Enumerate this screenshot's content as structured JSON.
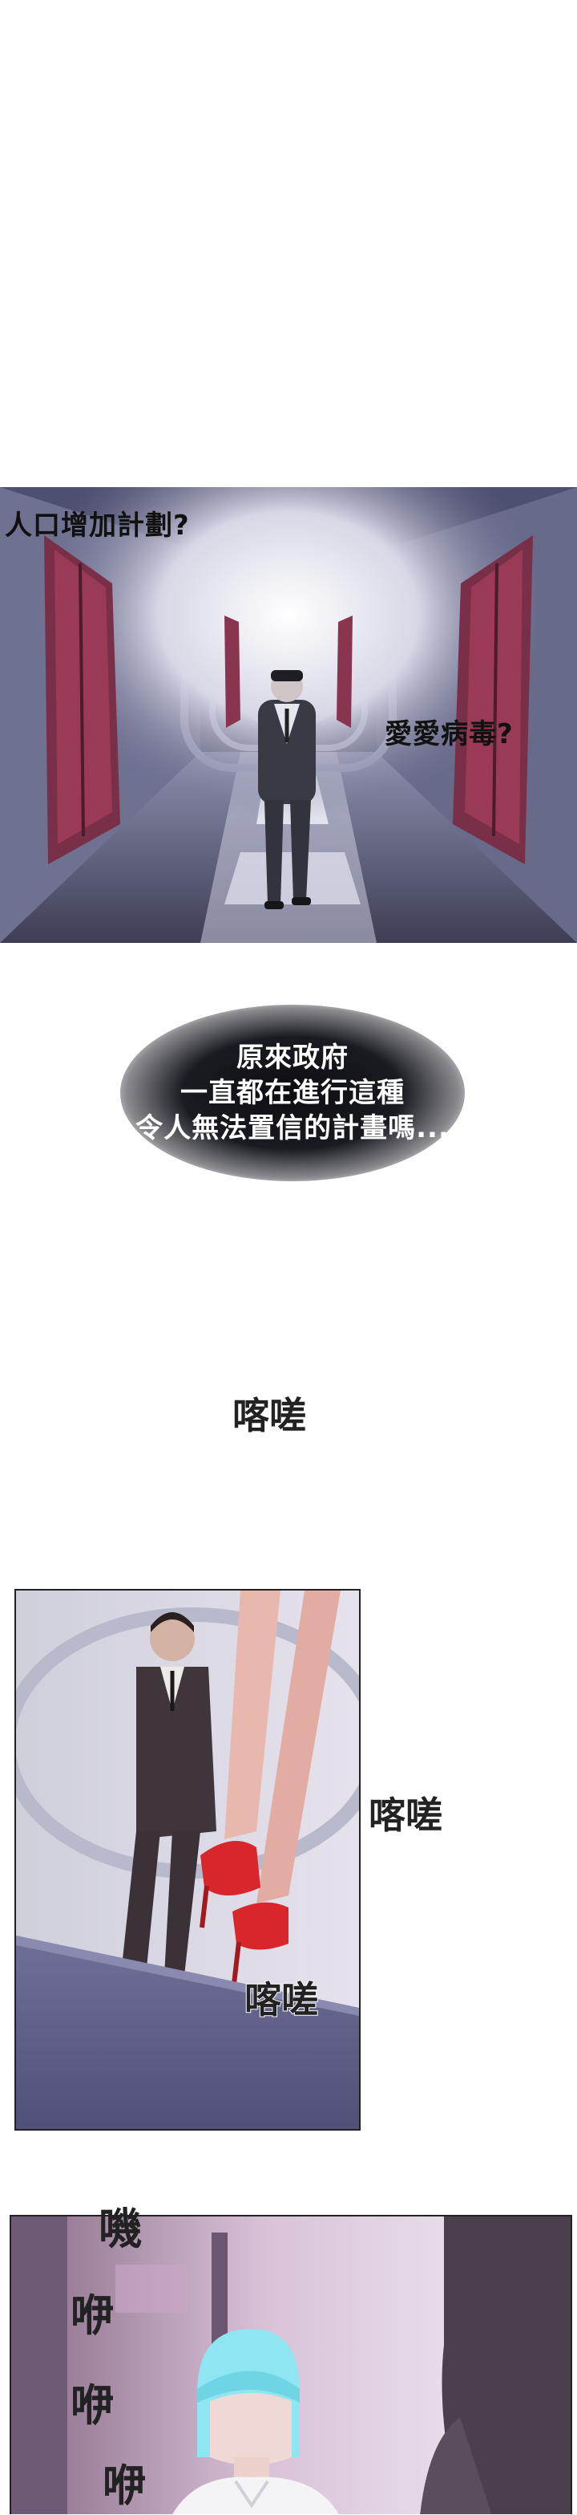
{
  "panel1": {
    "bubble_left": "人口增加計劃?",
    "bubble_right": "愛愛病毒?"
  },
  "narration": {
    "lines": [
      "原來政府",
      "一直都在進行這種",
      "令人無法置信的計畫嗎..."
    ]
  },
  "panel2": {
    "sfx_top": "喀嗟",
    "sfx_right": "喀嗟",
    "sfx_bottom": "喀嗟"
  },
  "panel3": {
    "sfx_vertical": [
      "嘰",
      "咿",
      "咿",
      "咿"
    ]
  },
  "colors": {
    "corridor": "#5a5c78",
    "door_red": "#8a3550",
    "heels": "#d8262a",
    "hair": "#8fe6f2",
    "wall_pink": "#c9a6c4"
  }
}
